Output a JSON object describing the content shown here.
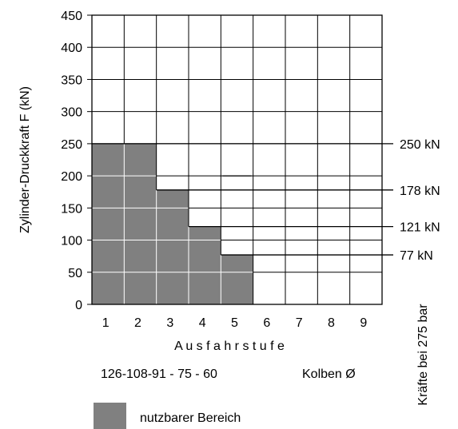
{
  "chart_data": {
    "type": "bar",
    "categories": [
      "1",
      "2",
      "3",
      "4",
      "5",
      "6",
      "7",
      "8",
      "9"
    ],
    "values": [
      250,
      250,
      178,
      121,
      77,
      0,
      0,
      0,
      0
    ],
    "ylabel": "Zylinder-Druckkraft F (kN)",
    "xlabel": "A u s f a h r s t u f e",
    "ylim": [
      0,
      450
    ],
    "yticks": [
      0,
      50,
      100,
      150,
      200,
      250,
      300,
      350,
      400,
      450
    ],
    "grid": true,
    "bar_color": "#808080",
    "force_lines": [
      {
        "value": 250,
        "label": "250 kN",
        "from_stage": 1
      },
      {
        "value": 178,
        "label": "178 kN",
        "from_stage": 3
      },
      {
        "value": 121,
        "label": "121 kN",
        "from_stage": 4
      },
      {
        "value": 77,
        "label": "77 kN",
        "from_stage": 5
      }
    ],
    "right_label": "Kräfte bei 275 bar",
    "piston_diameters": "126-108-91 - 75 - 60",
    "piston_label": "Kolben Ø",
    "legend": {
      "label": "nutzbarer Bereich",
      "color": "#808080",
      "position": "bottom-left"
    }
  }
}
